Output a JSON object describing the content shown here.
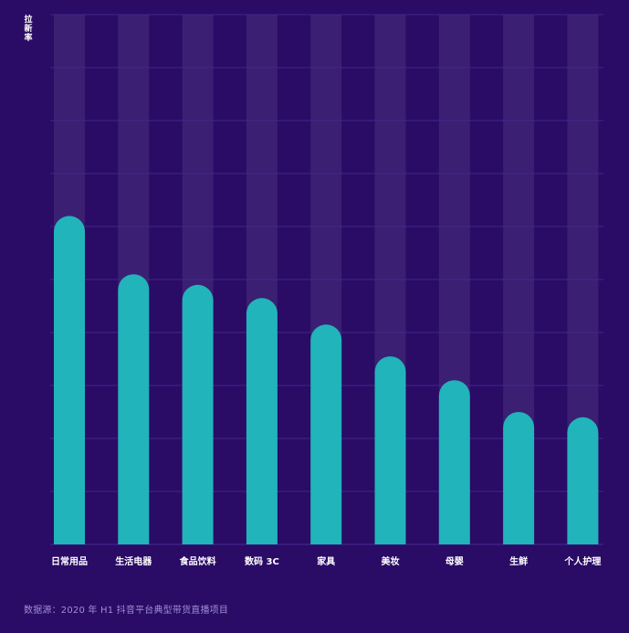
{
  "colors": {
    "background": "#2a0b66",
    "track": "#3a1f72",
    "bar": "#21b4ba",
    "grid": "#3f278a",
    "label": "#ffffff",
    "source": "#9f8fd3"
  },
  "chart_data": {
    "type": "bar",
    "title": "",
    "xlabel": "",
    "ylabel": "拉新率",
    "ylim": [
      0,
      100
    ],
    "grid": true,
    "categories": [
      "日常用品",
      "生活电器",
      "食品饮料",
      "数码 3C",
      "家具",
      "美妆",
      "母婴",
      "生鲜",
      "个人护理"
    ],
    "values": [
      62,
      51,
      49,
      46.5,
      41.5,
      35.5,
      31,
      25,
      24
    ]
  },
  "footer": {
    "source": "数据源：2020 年 H1 抖音平台典型带货直播项目"
  }
}
